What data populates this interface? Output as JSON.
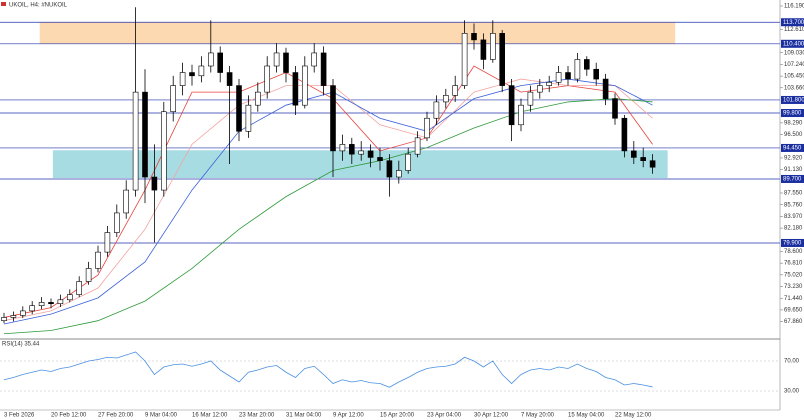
{
  "header": "UKOIL, H4: #NUKOIL",
  "chart_data": [
    {
      "type": "candlestick",
      "categories": [
        "3 Feb 2026",
        null,
        null,
        null,
        null,
        "20 Feb 12:00",
        null,
        null,
        null,
        null,
        "27 Feb 20:00",
        null,
        null,
        null,
        null,
        "9 Mar 04:00",
        null,
        null,
        null,
        null,
        "16 Mar 12:00",
        null,
        null,
        null,
        null,
        "23 Mar 20:00",
        null,
        null,
        null,
        null,
        "31 Mar 04:00",
        null,
        null,
        null,
        null,
        "9 Apr 12:00",
        null,
        null,
        null,
        null,
        "15 Apr 20:00",
        null,
        null,
        null,
        null,
        "23 Apr 04:00",
        null,
        null,
        null,
        null,
        "30 Apr 12:00",
        null,
        null,
        null,
        null,
        "7 May 20:00",
        null,
        null,
        null,
        null,
        "15 May 04:00",
        null,
        null,
        null,
        null,
        "22 May 12:00",
        null,
        null,
        null,
        null
      ],
      "open": [
        68.0,
        68.5,
        68.8,
        69.5,
        70.3,
        70.8,
        70.6,
        71.2,
        72.0,
        74.0,
        76.0,
        78.5,
        81.5,
        84.5,
        88.0,
        103.0,
        90.0,
        88.0,
        100.0,
        104.0,
        106.0,
        105.5,
        107.0,
        109.0,
        106.0,
        104.0,
        97.0,
        101.0,
        103.0,
        107.0,
        109.0,
        106.0,
        101.0,
        107.0,
        109.0,
        104.0,
        94.0,
        95.0,
        93.5,
        94.0,
        93.0,
        92.5,
        90.0,
        91.0,
        93.5,
        96.0,
        99.0,
        101.5,
        102.5,
        104.0,
        112.0,
        111.0,
        108.0,
        112.0,
        104.0,
        98.0,
        101.0,
        103.0,
        104.0,
        104.5,
        106.0,
        105.0,
        108.0,
        106.5,
        105.0,
        102.0,
        99.0,
        94.0,
        93.0,
        92.5
      ],
      "high": [
        69.2,
        69.4,
        70.2,
        71.0,
        71.6,
        71.4,
        72.0,
        72.8,
        74.8,
        77.0,
        79.5,
        82.5,
        85.8,
        89.5,
        116.0,
        106.5,
        95.0,
        101.5,
        105.5,
        107.5,
        107.2,
        108.5,
        114.0,
        110.0,
        107.0,
        105.0,
        102.5,
        104.5,
        108.5,
        110.5,
        109.8,
        107.0,
        108.5,
        110.5,
        110.0,
        105.0,
        96.5,
        96.0,
        95.5,
        95.0,
        94.5,
        93.5,
        92.5,
        94.5,
        97.0,
        100.0,
        102.5,
        103.5,
        105.5,
        114.0,
        113.5,
        112.0,
        114.0,
        112.5,
        105.0,
        102.0,
        104.0,
        105.0,
        105.5,
        107.0,
        107.0,
        109.0,
        108.5,
        107.5,
        105.8,
        102.8,
        99.5,
        95.5,
        94.5,
        93.5
      ],
      "low": [
        67.6,
        67.9,
        68.4,
        69.0,
        69.8,
        69.9,
        70.1,
        70.8,
        71.6,
        73.5,
        75.4,
        77.8,
        80.8,
        83.6,
        87.0,
        86.0,
        80.0,
        87.0,
        98.5,
        102.5,
        104.0,
        104.5,
        106.0,
        104.5,
        92.0,
        95.5,
        96.0,
        100.0,
        102.0,
        106.0,
        104.5,
        99.5,
        100.5,
        106.0,
        102.5,
        90.0,
        92.5,
        92.0,
        92.5,
        91.5,
        91.0,
        87.0,
        89.0,
        90.5,
        93.0,
        95.5,
        98.0,
        100.5,
        101.5,
        103.5,
        109.5,
        106.5,
        107.5,
        103.0,
        95.5,
        97.0,
        100.0,
        102.0,
        103.0,
        104.0,
        104.0,
        104.5,
        105.5,
        104.0,
        101.0,
        98.0,
        93.0,
        92.0,
        91.5,
        90.5
      ],
      "close": [
        68.5,
        68.8,
        69.5,
        70.3,
        70.8,
        70.6,
        71.2,
        72.0,
        74.0,
        76.0,
        78.5,
        81.5,
        84.5,
        88.0,
        103.0,
        90.0,
        88.0,
        100.0,
        104.0,
        106.0,
        105.5,
        107.0,
        109.0,
        106.0,
        104.0,
        97.0,
        101.0,
        103.0,
        107.0,
        109.0,
        106.0,
        101.0,
        107.0,
        109.0,
        104.0,
        94.0,
        95.0,
        93.5,
        94.0,
        93.0,
        92.5,
        90.0,
        91.0,
        93.5,
        96.0,
        99.0,
        101.5,
        102.5,
        104.0,
        112.0,
        111.0,
        108.0,
        112.0,
        104.0,
        98.0,
        101.0,
        103.0,
        104.0,
        104.5,
        106.0,
        105.0,
        108.0,
        106.5,
        105.0,
        102.0,
        99.0,
        94.0,
        93.0,
        92.5,
        91.5
      ],
      "series": [
        {
          "color": "#e8423a",
          "x": [
            0,
            5,
            10,
            15,
            20,
            25,
            30,
            35,
            40,
            45,
            50,
            55,
            60,
            65,
            69
          ],
          "values": [
            68.5,
            70,
            75,
            88,
            103,
            103,
            106,
            102,
            94,
            96,
            107,
            103,
            104,
            103,
            95
          ]
        },
        {
          "color": "#f2a3a0",
          "x": [
            0,
            5,
            10,
            15,
            20,
            25,
            30,
            35,
            40,
            45,
            50,
            55,
            60,
            65,
            69
          ],
          "values": [
            68,
            69.5,
            73,
            82,
            95,
            101,
            104,
            104,
            98,
            96,
            103,
            105,
            104,
            104,
            99
          ]
        },
        {
          "color": "#3a5fd9",
          "x": [
            0,
            5,
            10,
            15,
            20,
            25,
            30,
            35,
            40,
            45,
            50,
            55,
            60,
            65,
            69
          ],
          "values": [
            67.5,
            69,
            71.5,
            77,
            88,
            97,
            101,
            103,
            99,
            97,
            102,
            104,
            105,
            104,
            101
          ]
        },
        {
          "color": "#2e9a3a",
          "x": [
            0,
            5,
            10,
            15,
            20,
            25,
            30,
            35,
            40,
            45,
            50,
            55,
            60,
            65,
            69
          ],
          "values": [
            66,
            66.5,
            68,
            71,
            76,
            82,
            87,
            91,
            92.5,
            94.5,
            97.5,
            100,
            101.5,
            102,
            101.5
          ]
        }
      ],
      "zones": [
        {
          "color": "#fcd9b0",
          "from": 110.4,
          "to": 113.7,
          "x": [
            3.8,
            71.4
          ]
        },
        {
          "color": "#a8dce3",
          "from": 89.85,
          "to": 94.1,
          "x": [
            5.2,
            70.6
          ]
        }
      ],
      "levels": [
        {
          "value": 113.7,
          "label": "113.700"
        },
        {
          "value": 110.4,
          "label": "110.400"
        },
        {
          "value": 101.8,
          "label": "101.800"
        },
        {
          "value": 99.8,
          "label": "99.800"
        },
        {
          "value": 94.45,
          "label": "94.450"
        },
        {
          "value": 89.7,
          "label": "89.700"
        },
        {
          "value": 79.9,
          "label": "79.900"
        }
      ],
      "ylim": [
        65.35,
        116.8
      ],
      "yticks": [
        {
          "value": 116.19,
          "label": "116.190"
        },
        {
          "value": 112.61,
          "label": "112.610"
        },
        {
          "value": 109.03,
          "label": "109.030"
        },
        {
          "value": 107.24,
          "label": "107.240"
        },
        {
          "value": 105.45,
          "label": "105.450"
        },
        {
          "value": 103.66,
          "label": "103.660"
        },
        {
          "value": 98.29,
          "label": "98.290"
        },
        {
          "value": 96.5,
          "label": "96.500"
        },
        {
          "value": 92.92,
          "label": "92.920"
        },
        {
          "value": 91.13,
          "label": "91.130"
        },
        {
          "value": 87.55,
          "label": "87.550"
        },
        {
          "value": 85.76,
          "label": "85.760"
        },
        {
          "value": 83.97,
          "label": "83.970"
        },
        {
          "value": 82.18,
          "label": "82.180"
        },
        {
          "value": 78.6,
          "label": "78.600"
        },
        {
          "value": 76.81,
          "label": "76.810"
        },
        {
          "value": 75.02,
          "label": "75.020"
        },
        {
          "value": 73.23,
          "label": "73.230"
        },
        {
          "value": 71.44,
          "label": "71.440"
        },
        {
          "value": 69.65,
          "label": "69.650"
        },
        {
          "value": 67.86,
          "label": "67.860"
        }
      ]
    },
    {
      "type": "line",
      "title": "RSI(14) 35.44",
      "color": "#4a90e2",
      "values": [
        45,
        48,
        52,
        55,
        58,
        56,
        60,
        62,
        66,
        70,
        72,
        75,
        74,
        78,
        82,
        70,
        52,
        62,
        65,
        66,
        63,
        66,
        70,
        58,
        50,
        42,
        55,
        58,
        62,
        64,
        55,
        48,
        60,
        63,
        52,
        40,
        45,
        42,
        44,
        41,
        40,
        35,
        42,
        48,
        55,
        60,
        62,
        63,
        66,
        75,
        70,
        62,
        70,
        52,
        40,
        52,
        58,
        60,
        58,
        62,
        60,
        66,
        60,
        56,
        48,
        45,
        38,
        40,
        38,
        35.44
      ],
      "ylim": [
        4.7,
        98
      ],
      "yticks": [
        {
          "value": 70,
          "label": "70.00"
        },
        {
          "value": 30,
          "label": "30.00"
        }
      ]
    }
  ]
}
